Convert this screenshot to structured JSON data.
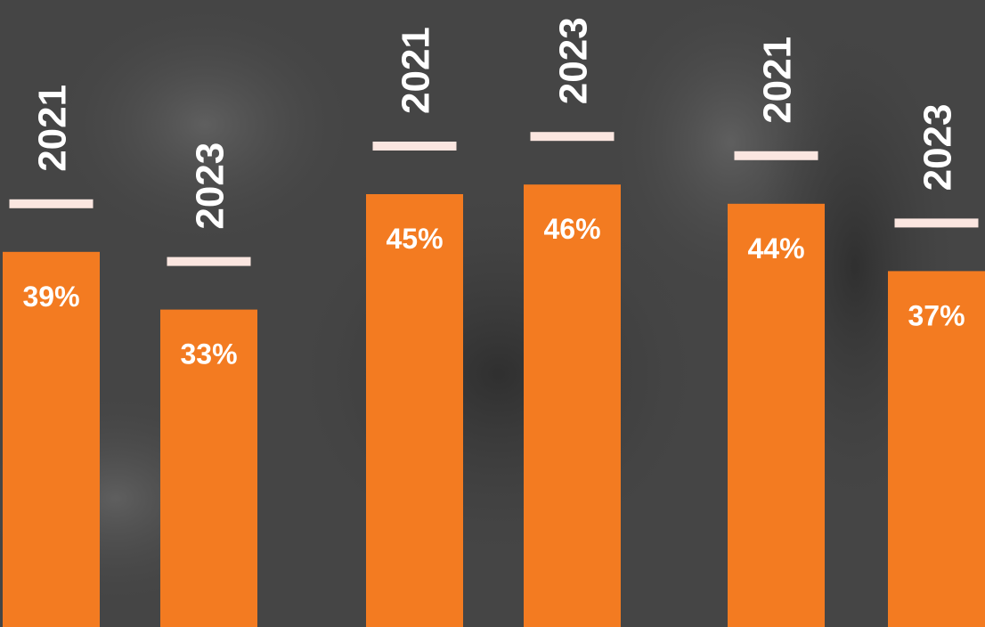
{
  "chart_data": {
    "type": "bar",
    "categories": [
      "2021",
      "2023",
      "2021",
      "2023",
      "2021",
      "2023"
    ],
    "values": [
      39,
      33,
      45,
      46,
      44,
      37
    ],
    "value_labels": [
      "39%",
      "33%",
      "45%",
      "46%",
      "44%",
      "37%"
    ],
    "color": "#f37b21"
  }
}
